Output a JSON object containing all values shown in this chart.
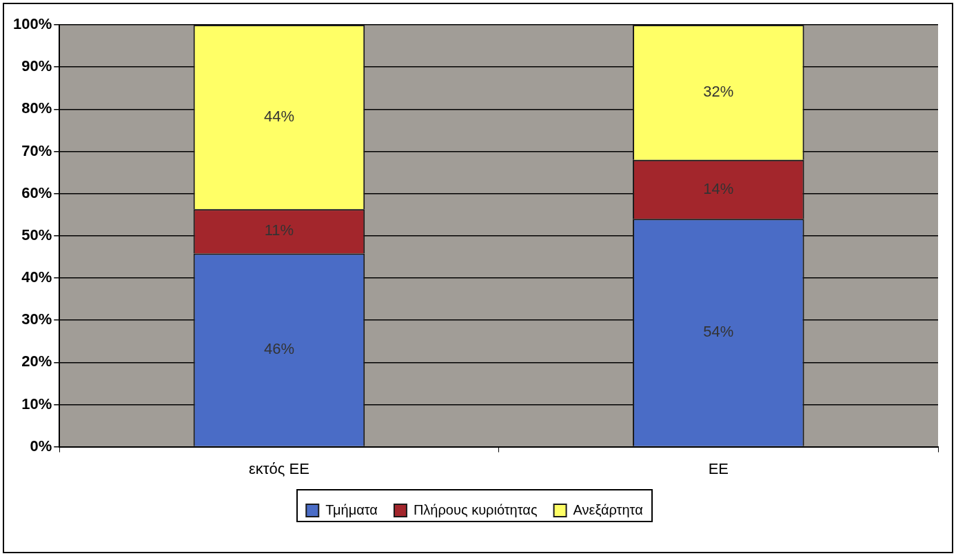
{
  "chart_data": {
    "type": "bar",
    "stacked": true,
    "categories": [
      "εκτός ΕΕ",
      "ΕΕ"
    ],
    "series": [
      {
        "name": "Τμήματα",
        "color": "#4a6cc6",
        "values": [
          45.8,
          54
        ],
        "value_labels": [
          "46%",
          "54%"
        ]
      },
      {
        "name": "Πλήρους κυριότητας",
        "color": "#a3262c",
        "values": [
          10.5,
          14
        ],
        "value_labels": [
          "11%",
          "14%"
        ]
      },
      {
        "name": "Ανεξάρτητα",
        "color": "#ffff66",
        "values": [
          43.7,
          32
        ],
        "value_labels": [
          "44%",
          "32%"
        ]
      }
    ],
    "ylim": [
      0,
      100
    ],
    "yticks": [
      {
        "value": 0,
        "label": "0%"
      },
      {
        "value": 10,
        "label": "10%"
      },
      {
        "value": 20,
        "label": "20%"
      },
      {
        "value": 30,
        "label": "30%"
      },
      {
        "value": 40,
        "label": "40%"
      },
      {
        "value": 50,
        "label": "50%"
      },
      {
        "value": 60,
        "label": "60%"
      },
      {
        "value": 70,
        "label": "70%"
      },
      {
        "value": 80,
        "label": "80%"
      },
      {
        "value": 90,
        "label": "90%"
      },
      {
        "value": 100,
        "label": "100%"
      }
    ],
    "grid": "y",
    "legend": "bottom"
  }
}
